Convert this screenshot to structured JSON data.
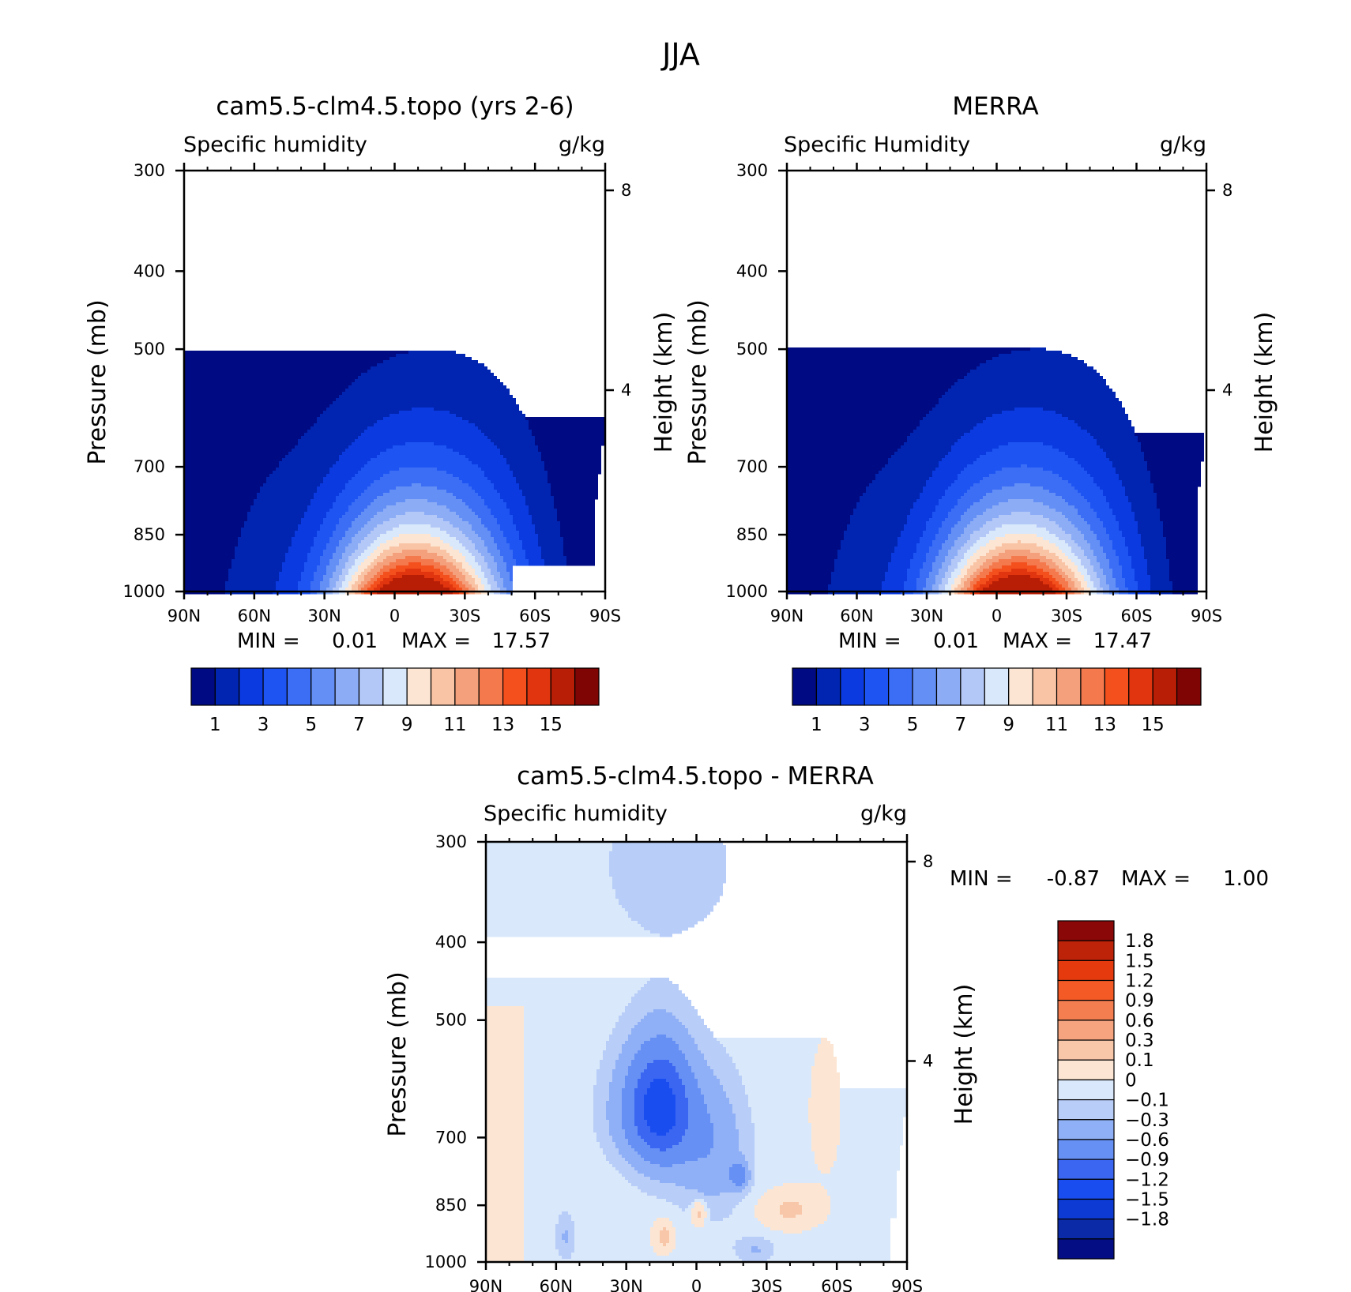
{
  "figure_title": "JJA",
  "chart_data": [
    {
      "type": "heatmap",
      "panel": "model",
      "title": "cam5.5-clm4.5.topo (yrs 2-6)",
      "subtitle_left": "Specific humidity",
      "units": "g/kg",
      "ylabel": "Pressure (mb)",
      "ylabel_right": "Height (km)",
      "x_ticks": [
        "90N",
        "60N",
        "30N",
        "0",
        "30S",
        "60S",
        "90S"
      ],
      "y_ticks": [
        300,
        400,
        500,
        700,
        850,
        1000
      ],
      "y_ticks_right": [
        8,
        4
      ],
      "ylim": [
        1000,
        300
      ],
      "y_scale": "log",
      "min_label": "MIN =",
      "min_value": "0.01",
      "max_label": "MAX =",
      "max_value": "17.57",
      "contour_levels": [
        1,
        2,
        3,
        4,
        5,
        6,
        7,
        8,
        9,
        10,
        11,
        12,
        13,
        14,
        15
      ],
      "colorbar_labels": [
        "1",
        "3",
        "5",
        "7",
        "9",
        "11",
        "13",
        "15"
      ],
      "peak_latitude": -7,
      "peak_value": 17.57
    },
    {
      "type": "heatmap",
      "panel": "reanalysis",
      "title": "MERRA",
      "subtitle_left": "Specific Humidity",
      "units": "g/kg",
      "ylabel": "Pressure (mb)",
      "ylabel_right": "Height (km)",
      "x_ticks": [
        "90N",
        "60N",
        "30N",
        "0",
        "30S",
        "60S",
        "90S"
      ],
      "y_ticks": [
        300,
        400,
        500,
        700,
        850,
        1000
      ],
      "y_ticks_right": [
        8,
        4
      ],
      "ylim": [
        1000,
        300
      ],
      "y_scale": "log",
      "min_label": "MIN =",
      "min_value": "0.01",
      "max_label": "MAX =",
      "max_value": "17.47",
      "contour_levels": [
        1,
        2,
        3,
        4,
        5,
        6,
        7,
        8,
        9,
        10,
        11,
        12,
        13,
        14,
        15
      ],
      "colorbar_labels": [
        "1",
        "3",
        "5",
        "7",
        "9",
        "11",
        "13",
        "15"
      ],
      "peak_latitude": -8,
      "peak_value": 17.47
    },
    {
      "type": "heatmap",
      "panel": "difference",
      "title": "cam5.5-clm4.5.topo - MERRA",
      "subtitle_left": "Specific humidity",
      "units": "g/kg",
      "ylabel": "Pressure (mb)",
      "ylabel_right": "Height (km)",
      "x_ticks": [
        "90N",
        "60N",
        "30N",
        "0",
        "30S",
        "60S",
        "90S"
      ],
      "y_ticks": [
        300,
        400,
        500,
        700,
        850,
        1000
      ],
      "y_ticks_right": [
        8,
        4
      ],
      "ylim": [
        1000,
        300
      ],
      "y_scale": "log",
      "min_label": "MIN =",
      "min_value": "-0.87",
      "max_label": "MAX =",
      "max_value": "1.00",
      "contour_levels": [
        -1.8,
        -1.5,
        -1.2,
        -0.9,
        -0.6,
        -0.3,
        -0.1,
        0,
        0.1,
        0.3,
        0.6,
        0.9,
        1.2,
        1.5,
        1.8
      ],
      "colorbar_labels": [
        "1.8",
        "1.5",
        "1.2",
        "0.9",
        "0.6",
        "0.3",
        "0.1",
        "0",
        "-0.1",
        "-0.3",
        "-0.6",
        "-0.9",
        "-1.2",
        "-1.5",
        "-1.8"
      ]
    }
  ],
  "colors": {
    "seq_colormap": [
      "#000a82",
      "#0125b0",
      "#0a3ae0",
      "#1e55f2",
      "#3c6ef5",
      "#6490f5",
      "#8cacf5",
      "#b4c8f8",
      "#d9e8fa",
      "#fce6d3",
      "#f9c4a6",
      "#f5a07c",
      "#f47a4e",
      "#f4501e",
      "#e0350e",
      "#b71e05",
      "#7f0505"
    ],
    "div_colormap": [
      "#040d83",
      "#0a2aa8",
      "#0c3ad2",
      "#1a4df0",
      "#3a66f2",
      "#6690f4",
      "#8fb0f6",
      "#b8cdf8",
      "#d9e8fa",
      "#fce6d3",
      "#f8c7aa",
      "#f5a47f",
      "#f47e50",
      "#f45a25",
      "#e43a0e",
      "#bd2308",
      "#8b0808"
    ],
    "missing": "#ffffff"
  }
}
